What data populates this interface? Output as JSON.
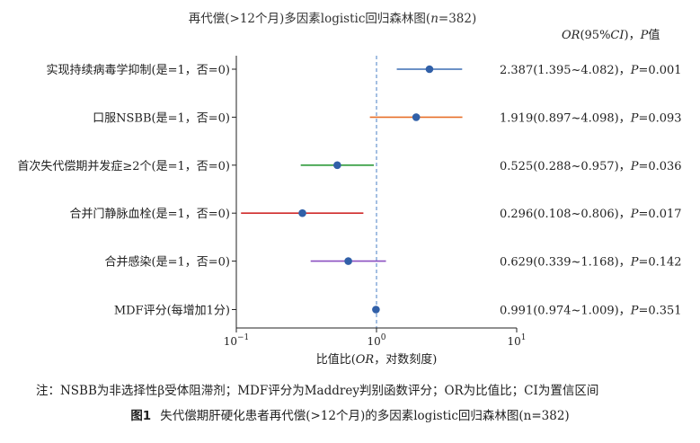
{
  "chart_data": {
    "type": "forest",
    "title": "再代偿(>12个月)多因素logistic回归森林图(n=382)",
    "stat_header": "OR(95%CI)，P值",
    "xlabel": "比值比(OR，对数刻度)",
    "x_scale": "log",
    "xlim": [
      0.1,
      10
    ],
    "x_ticks": [
      {
        "value": 0.1,
        "base": "10",
        "exp": "−1"
      },
      {
        "value": 1,
        "base": "10",
        "exp": "0"
      },
      {
        "value": 10,
        "base": "10",
        "exp": "1"
      }
    ],
    "reference_line": 1,
    "rows": [
      {
        "label": "实现持续病毒学抑制(是=1，否=0)",
        "or": 2.387,
        "lo": 1.395,
        "hi": 4.082,
        "stat": "2.387(1.395~4.082)，P=0.001",
        "color": "#3b6db3"
      },
      {
        "label": "口服NSBB(是=1，否=0)",
        "or": 1.919,
        "lo": 0.897,
        "hi": 4.098,
        "stat": "1.919(0.897~4.098)，P=0.093",
        "color": "#e8702a"
      },
      {
        "label": "首次失代偿期并发症≥2个(是=1，否=0)",
        "or": 0.525,
        "lo": 0.288,
        "hi": 0.957,
        "stat": "0.525(0.288~0.957)，P=0.036",
        "color": "#2f9a3a"
      },
      {
        "label": "合并门静脉血栓(是=1，否=0)",
        "or": 0.296,
        "lo": 0.108,
        "hi": 0.806,
        "stat": "0.296(0.108~0.806)，P=0.017",
        "color": "#d02a2a"
      },
      {
        "label": "合并感染(是=1，否=0)",
        "or": 0.629,
        "lo": 0.339,
        "hi": 1.168,
        "stat": "0.629(0.339~1.168)，P=0.142",
        "color": "#8a4fc0"
      },
      {
        "label": "MDF评分(每增加1分)",
        "or": 0.991,
        "lo": 0.974,
        "hi": 1.009,
        "stat": "0.991(0.974~1.009)，P=0.351",
        "color": "#3b6db3"
      }
    ]
  },
  "footnote": "注：NSBB为非选择性β受体阻滞剂；MDF评分为Maddrey判别函数评分；OR为比值比；CI为置信区间",
  "caption": {
    "fig_label": "图1",
    "text": "失代偿期肝硬化患者再代偿(>12个月)的多因素logistic回归森林图(n=382)"
  }
}
